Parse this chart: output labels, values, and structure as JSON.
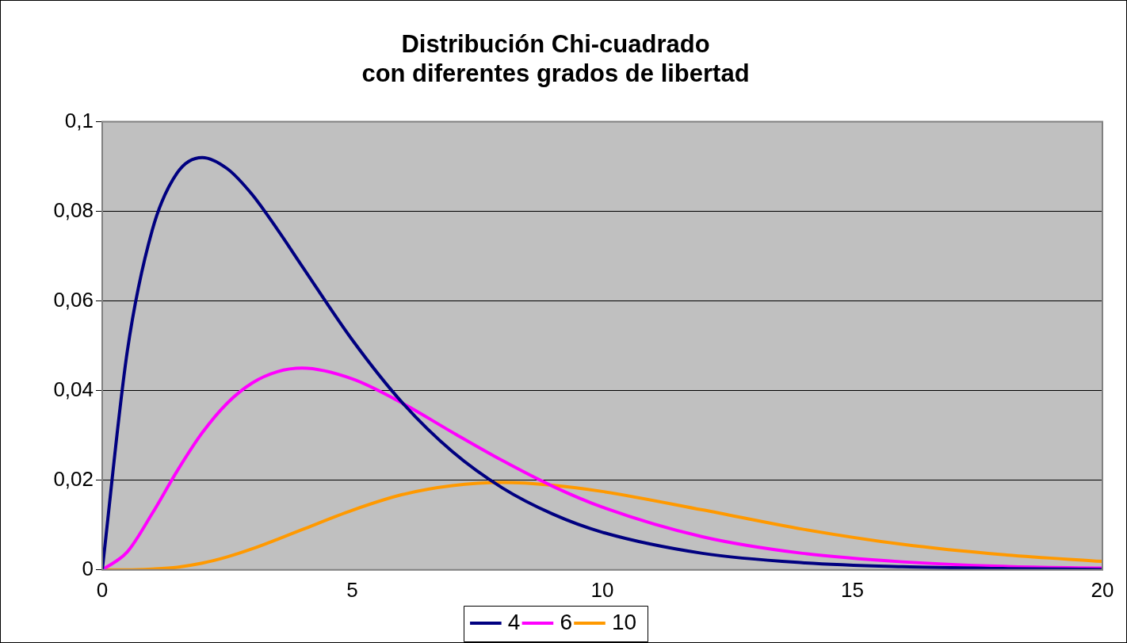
{
  "chart_data": {
    "type": "line",
    "title": "Distribución Chi-cuadrado\ncon diferentes grados de libertad",
    "x": [
      0,
      0.5,
      1,
      1.5,
      2,
      2.5,
      3,
      3.5,
      4,
      5,
      6,
      7,
      8,
      9,
      10,
      12,
      14,
      16,
      18,
      20
    ],
    "series": [
      {
        "name": "4",
        "color": "#000080",
        "values": [
          0,
          0.0487,
          0.0758,
          0.0886,
          0.092,
          0.0895,
          0.0837,
          0.076,
          0.0677,
          0.0513,
          0.0373,
          0.0264,
          0.0183,
          0.0125,
          0.0084,
          0.0037,
          0.0016,
          0.0007,
          0.0003,
          0.0001
        ]
      },
      {
        "name": "6",
        "color": "#ff00ff",
        "values": [
          0,
          0.004,
          0.0126,
          0.0221,
          0.0306,
          0.0372,
          0.0417,
          0.0442,
          0.045,
          0.0426,
          0.0372,
          0.0307,
          0.0244,
          0.0187,
          0.014,
          0.0074,
          0.0037,
          0.0018,
          0.0008,
          0.0004
        ]
      },
      {
        "name": "10",
        "color": "#ff9900",
        "values": [
          0,
          0,
          0.0002,
          0.0006,
          0.0015,
          0.0029,
          0.0047,
          0.0068,
          0.009,
          0.0133,
          0.0168,
          0.0188,
          0.0195,
          0.0189,
          0.0175,
          0.0134,
          0.0091,
          0.0057,
          0.0034,
          0.0019
        ]
      }
    ],
    "xlim": [
      0,
      20
    ],
    "xticks": [
      0,
      5,
      10,
      15,
      20
    ],
    "ylim": [
      0,
      0.1
    ],
    "yticks": [
      {
        "value": 0,
        "label": "0"
      },
      {
        "value": 0.02,
        "label": "0,02"
      },
      {
        "value": 0.04,
        "label": "0,04"
      },
      {
        "value": 0.06,
        "label": "0,06"
      },
      {
        "value": 0.08,
        "label": "0,08"
      },
      {
        "value": 0.1,
        "label": "0,1"
      }
    ],
    "grid": "y",
    "legend": "bottom",
    "marker": "none",
    "line_style": "solid"
  }
}
